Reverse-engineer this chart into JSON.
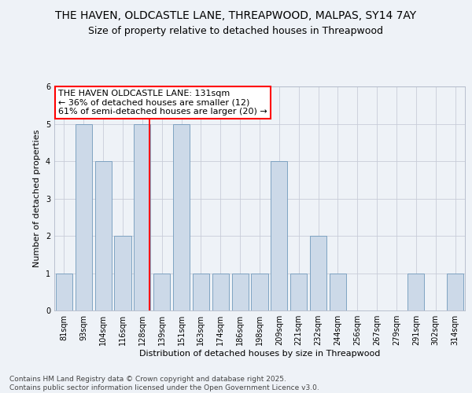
{
  "title1": "THE HAVEN, OLDCASTLE LANE, THREAPWOOD, MALPAS, SY14 7AY",
  "title2": "Size of property relative to detached houses in Threapwood",
  "xlabel": "Distribution of detached houses by size in Threapwood",
  "ylabel": "Number of detached properties",
  "categories": [
    "81sqm",
    "93sqm",
    "104sqm",
    "116sqm",
    "128sqm",
    "139sqm",
    "151sqm",
    "163sqm",
    "174sqm",
    "186sqm",
    "198sqm",
    "209sqm",
    "221sqm",
    "232sqm",
    "244sqm",
    "256sqm",
    "267sqm",
    "279sqm",
    "291sqm",
    "302sqm",
    "314sqm"
  ],
  "values": [
    1,
    5,
    4,
    2,
    5,
    1,
    5,
    1,
    1,
    1,
    1,
    4,
    1,
    2,
    1,
    0,
    0,
    0,
    1,
    0,
    1
  ],
  "bar_color": "#ccd9e8",
  "bar_edge_color": "#7099bb",
  "red_line_x": 4.38,
  "annotation_text": "THE HAVEN OLDCASTLE LANE: 131sqm\n← 36% of detached houses are smaller (12)\n61% of semi-detached houses are larger (20) →",
  "footer_text": "Contains HM Land Registry data © Crown copyright and database right 2025.\nContains public sector information licensed under the Open Government Licence v3.0.",
  "ylim": [
    0,
    6
  ],
  "yticks": [
    0,
    1,
    2,
    3,
    4,
    5,
    6
  ],
  "background_color": "#eef2f7",
  "title_fontsize": 10,
  "subtitle_fontsize": 9,
  "annotation_fontsize": 8,
  "footer_fontsize": 6.5,
  "axis_label_fontsize": 8,
  "tick_fontsize": 7,
  "ylabel_fontsize": 8
}
